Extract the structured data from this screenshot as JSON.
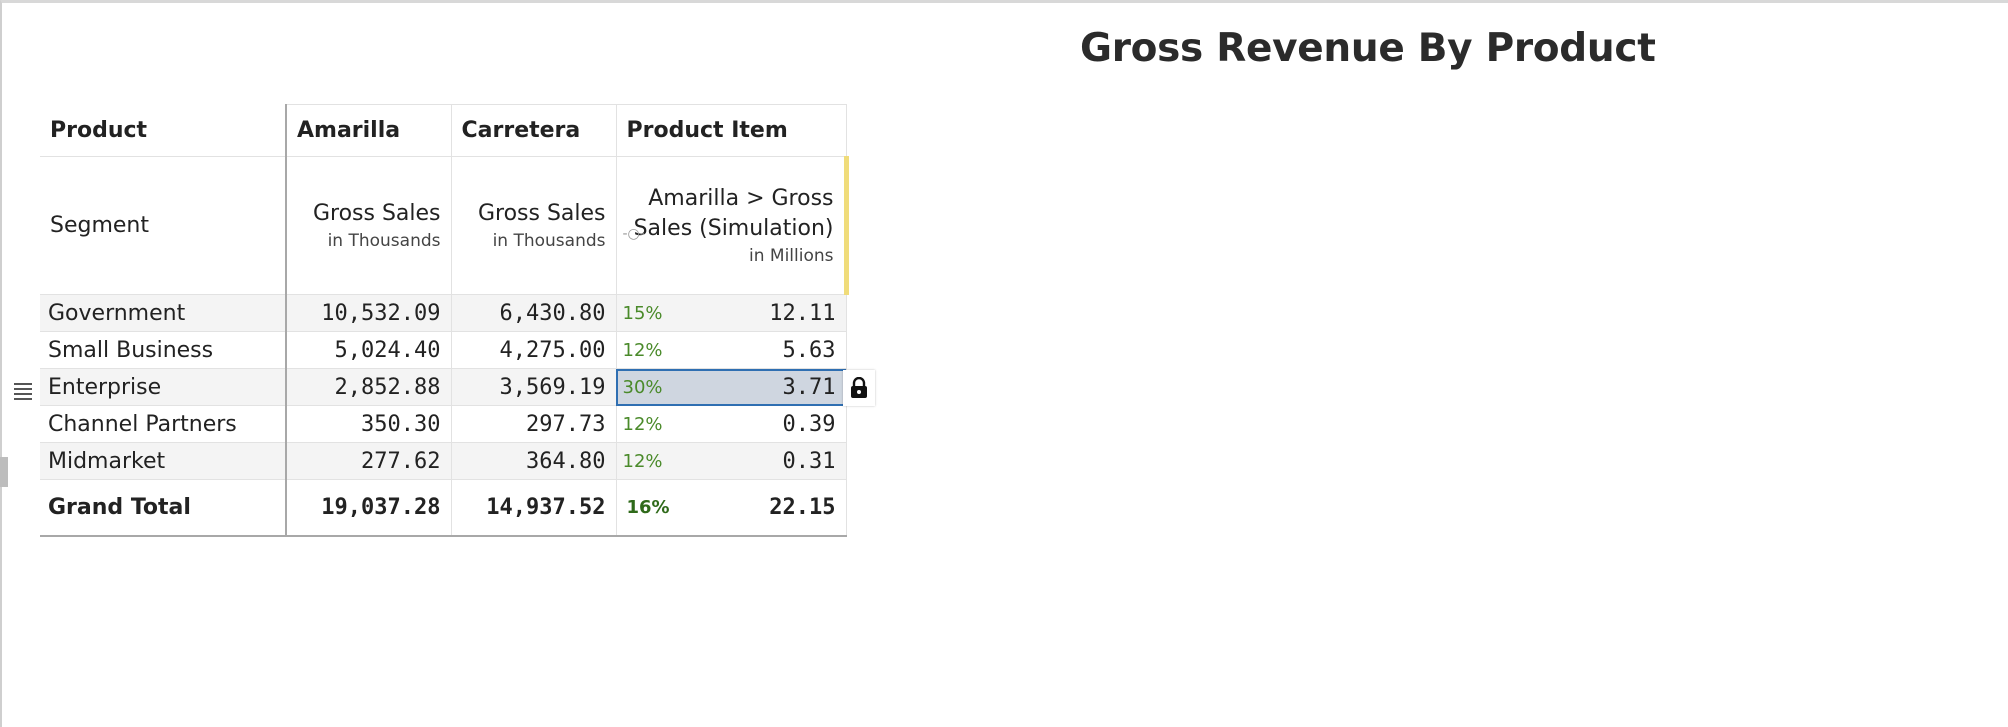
{
  "report": {
    "title": "Gross Revenue By Product"
  },
  "table": {
    "header": {
      "dimension_label": "Product",
      "columns": [
        "Amarilla",
        "Carretera",
        "Product Item"
      ]
    },
    "subheader": {
      "dimension_label": "Segment",
      "measures": [
        {
          "name": "Gross Sales",
          "unit": "in Thousands"
        },
        {
          "name": "Gross Sales",
          "unit": "in Thousands"
        },
        {
          "name": "Amarilla > Gross Sales (Simulation)",
          "name_line1": "Amarilla > Gross",
          "name_line2": "Sales (Simulation)",
          "unit": "in Millions"
        }
      ]
    },
    "rows": [
      {
        "segment": "Government",
        "amarilla": "10,532.09",
        "carretera": "6,430.80",
        "pct": "15%",
        "sim": "12.11"
      },
      {
        "segment": "Small Business",
        "amarilla": "5,024.40",
        "carretera": "4,275.00",
        "pct": "12%",
        "sim": "5.63"
      },
      {
        "segment": "Enterprise",
        "amarilla": "2,852.88",
        "carretera": "3,569.19",
        "pct": "30%",
        "sim": "3.71"
      },
      {
        "segment": "Channel Partners",
        "amarilla": "350.30",
        "carretera": "297.73",
        "pct": "12%",
        "sim": "0.39"
      },
      {
        "segment": "Midmarket",
        "amarilla": "277.62",
        "carretera": "364.80",
        "pct": "12%",
        "sim": "0.31"
      }
    ],
    "total": {
      "segment": "Grand Total",
      "amarilla": "19,037.28",
      "carretera": "14,937.52",
      "pct": "16%",
      "sim": "22.15"
    }
  },
  "icons": {
    "row_menu": "drag-handle-icon",
    "cell_lock": "lock-icon"
  },
  "colors": {
    "pct_green": "#4a8a2a",
    "selection_border": "#2f6fb2",
    "selection_fill": "#cfd6e0",
    "simulation_marker": "#f0dc7a"
  }
}
